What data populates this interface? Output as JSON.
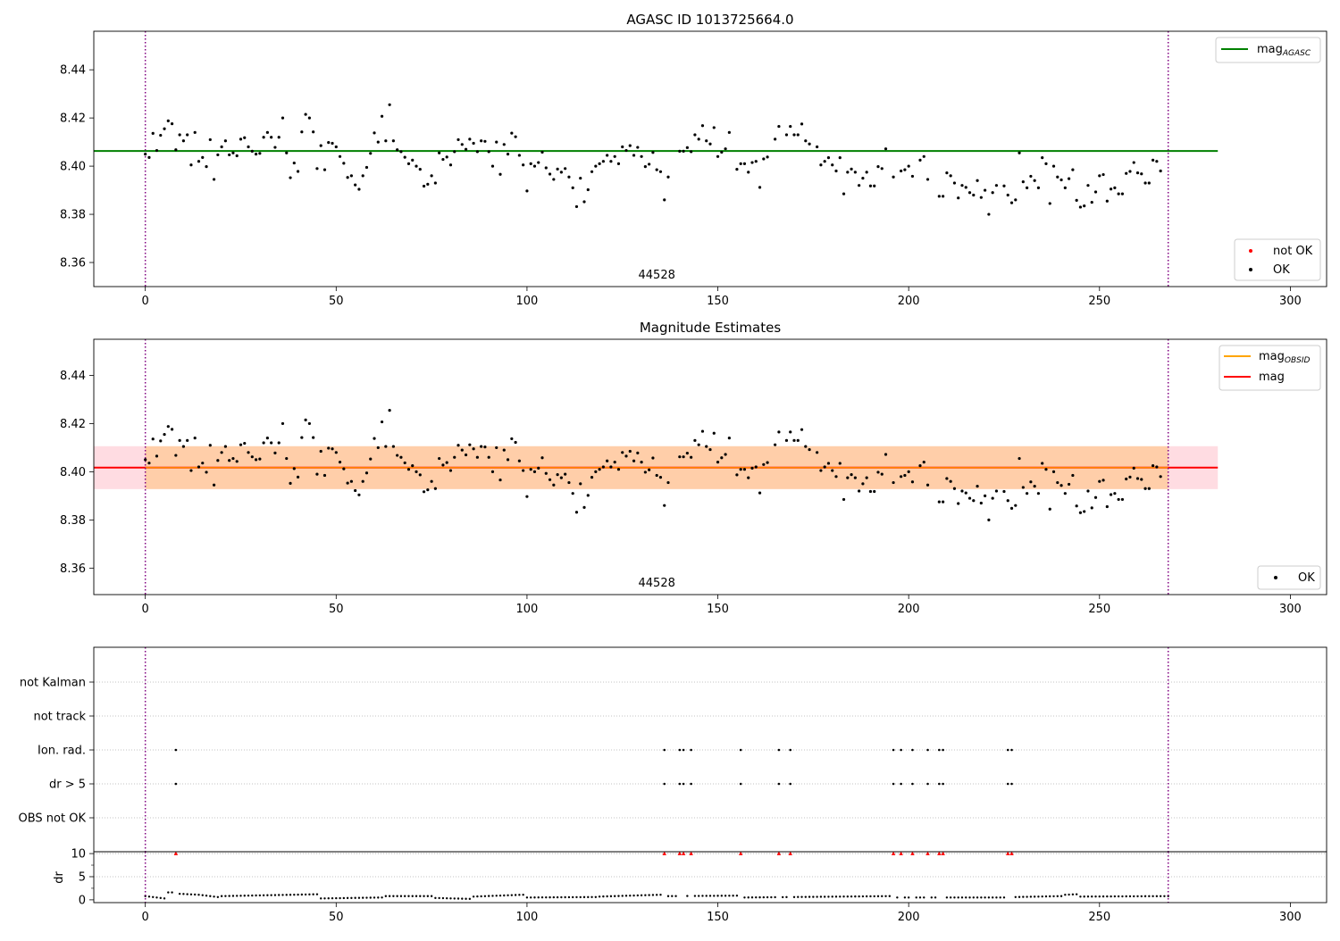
{
  "chart_data": [
    {
      "type": "scatter",
      "title": "AGASC ID 1013725664.0",
      "xlabel": "",
      "ylabel": "",
      "xlim": [
        -13.5,
        309.5
      ],
      "ylim": [
        8.35,
        8.456
      ],
      "x_ticks": [
        "0",
        "50",
        "100",
        "150",
        "200",
        "250",
        "300"
      ],
      "y_ticks": [
        "8.36",
        "8.38",
        "8.40",
        "8.42",
        "8.44"
      ],
      "vlines": [
        0,
        268
      ],
      "obsid_label": "44528",
      "hline": {
        "name": "mag_AGASC",
        "value": 8.4063,
        "x_range": [
          -13.5,
          281
        ],
        "color": "#008000"
      },
      "legend_lines": [
        {
          "label": "mag",
          "subscript": "AGASC",
          "color": "#008000"
        }
      ],
      "legend_points": [
        {
          "label": "not OK",
          "color": "#ff0000"
        },
        {
          "label": "OK",
          "color": "#000000"
        }
      ],
      "legend_placement": [
        "top-right",
        "bottom-right"
      ],
      "series": [
        {
          "name": "OK",
          "color": "#000000",
          "points_ref": "mag_points"
        }
      ]
    },
    {
      "type": "scatter",
      "title": "Magnitude Estimates",
      "xlabel": "",
      "ylabel": "",
      "xlim": [
        -13.5,
        309.5
      ],
      "ylim": [
        8.349,
        8.455
      ],
      "x_ticks": [
        "0",
        "50",
        "100",
        "150",
        "200",
        "250",
        "300"
      ],
      "y_ticks": [
        "8.36",
        "8.38",
        "8.40",
        "8.42",
        "8.44"
      ],
      "vlines": [
        0,
        268
      ],
      "obsid_label": "44528",
      "mag_line": {
        "value": 8.4017,
        "x_range": [
          -13.5,
          281
        ],
        "color": "#ff0000"
      },
      "bands": [
        {
          "low": 8.3928,
          "high": 8.4106,
          "x_range": [
            -13.5,
            281
          ],
          "color": "#ffc0cb"
        },
        {
          "low": 8.3928,
          "high": 8.4106,
          "x_range": [
            0,
            268
          ],
          "color": "#ffa500"
        }
      ],
      "legend_lines": [
        {
          "label": "mag",
          "subscript": "OBSID",
          "color": "#ffa500"
        },
        {
          "label": "mag",
          "subscript": "",
          "color": "#ff0000"
        }
      ],
      "legend_points": [
        {
          "label": "OK",
          "color": "#000000"
        }
      ],
      "legend_placement": [
        "top-right",
        "bottom-right"
      ],
      "series": [
        {
          "name": "OK",
          "color": "#000000",
          "points_ref": "mag_points"
        }
      ]
    },
    {
      "type": "scatter",
      "title": "",
      "xlim": [
        -13.5,
        309.5
      ],
      "x_ticks": [
        "0",
        "50",
        "100",
        "150",
        "200",
        "250",
        "300"
      ],
      "categories": [
        "not Kalman",
        "not track",
        "Ion. rad.",
        "dr > 5",
        "OBS not OK"
      ],
      "vlines": [
        0,
        268
      ],
      "flags": {
        "Ion. rad.": [
          8,
          136,
          140,
          141,
          143,
          156,
          166,
          169,
          196,
          198,
          201,
          205,
          208,
          209,
          226,
          227
        ],
        "dr > 5": [
          8,
          136,
          140,
          141,
          143,
          156,
          166,
          169,
          196,
          198,
          201,
          205,
          208,
          209,
          226,
          227
        ],
        "not Kalman": [],
        "not track": [],
        "OBS not OK": []
      }
    },
    {
      "type": "scatter",
      "title": "",
      "ylabel": "dr",
      "xlim": [
        -13.5,
        309.5
      ],
      "ylim": [
        -0.6,
        10.4
      ],
      "x_ticks": [
        "0",
        "50",
        "100",
        "150",
        "200",
        "250",
        "300"
      ],
      "y_ticks": [
        "0",
        "5",
        "10"
      ],
      "vlines": [
        0,
        268
      ],
      "clipped_value": 10,
      "clipped_color": "#ff0000",
      "clipped_x": [
        8,
        136,
        140,
        141,
        143,
        156,
        166,
        169,
        196,
        198,
        201,
        205,
        208,
        209,
        226,
        227
      ],
      "dr_segments": [
        {
          "x0": 0,
          "x1": 2,
          "y0": 0.8,
          "y1": 0.6
        },
        {
          "x0": 3,
          "x1": 5,
          "y0": 0.5,
          "y1": 0.3
        },
        {
          "x0": 6,
          "x1": 7,
          "y0": 1.6,
          "y1": 1.6
        },
        {
          "x0": 9,
          "x1": 14,
          "y0": 1.3,
          "y1": 1.1
        },
        {
          "x0": 15,
          "x1": 19,
          "y0": 1.0,
          "y1": 0.6
        },
        {
          "x0": 20,
          "x1": 45,
          "y0": 0.8,
          "y1": 1.2
        },
        {
          "x0": 46,
          "x1": 62,
          "y0": 0.3,
          "y1": 0.5
        },
        {
          "x0": 63,
          "x1": 75,
          "y0": 0.8,
          "y1": 0.8
        },
        {
          "x0": 76,
          "x1": 85,
          "y0": 0.4,
          "y1": 0.2
        },
        {
          "x0": 86,
          "x1": 99,
          "y0": 0.7,
          "y1": 1.1
        },
        {
          "x0": 100,
          "x1": 118,
          "y0": 0.5,
          "y1": 0.6
        },
        {
          "x0": 119,
          "x1": 135,
          "y0": 0.7,
          "y1": 1.1
        },
        {
          "x0": 137,
          "x1": 155,
          "y0": 0.8,
          "y1": 0.9
        },
        {
          "x0": 157,
          "x1": 195,
          "y0": 0.5,
          "y1": 0.8
        },
        {
          "x0": 197,
          "x1": 225,
          "y0": 0.5,
          "y1": 0.5
        },
        {
          "x0": 228,
          "x1": 240,
          "y0": 0.6,
          "y1": 0.8
        },
        {
          "x0": 241,
          "x1": 244,
          "y0": 1.1,
          "y1": 1.2
        },
        {
          "x0": 245,
          "x1": 268,
          "y0": 0.7,
          "y1": 0.8
        }
      ]
    }
  ],
  "mag_points": [
    [
      0,
      8.405
    ],
    [
      1,
      8.4036
    ],
    [
      2,
      8.4136
    ],
    [
      3,
      8.4065
    ],
    [
      4,
      8.4128
    ],
    [
      5,
      8.4155
    ],
    [
      6,
      8.4188
    ],
    [
      7,
      8.4176
    ],
    [
      8,
      8.4068
    ],
    [
      9,
      8.413
    ],
    [
      10,
      8.4105
    ],
    [
      11,
      8.413
    ],
    [
      12,
      8.4005
    ],
    [
      13,
      8.414
    ],
    [
      14,
      8.402
    ],
    [
      15,
      8.4036
    ],
    [
      16,
      8.3998
    ],
    [
      17,
      8.411
    ],
    [
      18,
      8.3945
    ],
    [
      19,
      8.4047
    ],
    [
      20,
      8.408
    ],
    [
      21,
      8.4105
    ],
    [
      22,
      8.4047
    ],
    [
      23,
      8.4055
    ],
    [
      24,
      8.4043
    ],
    [
      25,
      8.4112
    ],
    [
      26,
      8.4118
    ],
    [
      27,
      8.408
    ],
    [
      28,
      8.4062
    ],
    [
      29,
      8.405
    ],
    [
      30,
      8.4053
    ],
    [
      31,
      8.412
    ],
    [
      32,
      8.414
    ],
    [
      33,
      8.412
    ],
    [
      34,
      8.4078
    ],
    [
      35,
      8.412
    ],
    [
      36,
      8.42
    ],
    [
      37,
      8.4055
    ],
    [
      38,
      8.3952
    ],
    [
      39,
      8.4013
    ],
    [
      40,
      8.3978
    ],
    [
      41,
      8.4142
    ],
    [
      42,
      8.4215
    ],
    [
      43,
      8.42
    ],
    [
      44,
      8.4142
    ],
    [
      45,
      8.399
    ],
    [
      46,
      8.4085
    ],
    [
      47,
      8.3985
    ],
    [
      48,
      8.4098
    ],
    [
      49,
      8.4095
    ],
    [
      50,
      8.408
    ],
    [
      51,
      8.404
    ],
    [
      52,
      8.4012
    ],
    [
      53,
      8.3953
    ],
    [
      54,
      8.396
    ],
    [
      55,
      8.3922
    ],
    [
      56,
      8.3904
    ],
    [
      57,
      8.396
    ],
    [
      58,
      8.3995
    ],
    [
      59,
      8.4053
    ],
    [
      60,
      8.4138
    ],
    [
      61,
      8.41
    ],
    [
      62,
      8.4207
    ],
    [
      63,
      8.4105
    ],
    [
      64,
      8.4255
    ],
    [
      65,
      8.4105
    ],
    [
      66,
      8.4068
    ],
    [
      67,
      8.406
    ],
    [
      68,
      8.4037
    ],
    [
      69,
      8.401
    ],
    [
      70,
      8.4025
    ],
    [
      71,
      8.4
    ],
    [
      72,
      8.3987
    ],
    [
      73,
      8.3917
    ],
    [
      74,
      8.3925
    ],
    [
      75,
      8.396
    ],
    [
      76,
      8.393
    ],
    [
      77,
      8.4055
    ],
    [
      78,
      8.4028
    ],
    [
      79,
      8.4038
    ],
    [
      80,
      8.4005
    ],
    [
      81,
      8.406
    ],
    [
      82,
      8.411
    ],
    [
      83,
      8.409
    ],
    [
      84,
      8.407
    ],
    [
      85,
      8.4112
    ],
    [
      86,
      8.4095
    ],
    [
      87,
      8.406
    ],
    [
      88,
      8.4105
    ],
    [
      89,
      8.4103
    ],
    [
      90,
      8.406
    ],
    [
      91,
      8.4
    ],
    [
      92,
      8.41
    ],
    [
      93,
      8.3966
    ],
    [
      94,
      8.409
    ],
    [
      95,
      8.405
    ],
    [
      96,
      8.4137
    ],
    [
      97,
      8.4122
    ],
    [
      98,
      8.4045
    ],
    [
      99,
      8.4005
    ],
    [
      100,
      8.3897
    ],
    [
      101,
      8.401
    ],
    [
      102,
      8.4
    ],
    [
      103,
      8.4015
    ],
    [
      104,
      8.4058
    ],
    [
      105,
      8.3993
    ],
    [
      106,
      8.3967
    ],
    [
      107,
      8.3945
    ],
    [
      108,
      8.3988
    ],
    [
      109,
      8.3975
    ],
    [
      110,
      8.399
    ],
    [
      111,
      8.3955
    ],
    [
      112,
      8.391
    ],
    [
      113,
      8.3832
    ],
    [
      114,
      8.395
    ],
    [
      115,
      8.3852
    ],
    [
      116,
      8.3902
    ],
    [
      117,
      8.3977
    ],
    [
      118,
      8.4
    ],
    [
      119,
      8.401
    ],
    [
      120,
      8.402
    ],
    [
      121,
      8.4045
    ],
    [
      122,
      8.402
    ],
    [
      123,
      8.404
    ],
    [
      124,
      8.401
    ],
    [
      125,
      8.408
    ],
    [
      126,
      8.4065
    ],
    [
      127,
      8.4085
    ],
    [
      128,
      8.4045
    ],
    [
      129,
      8.4078
    ],
    [
      130,
      8.404
    ],
    [
      131,
      8.3998
    ],
    [
      132,
      8.4008
    ],
    [
      133,
      8.4057
    ],
    [
      134,
      8.3985
    ],
    [
      135,
      8.3977
    ],
    [
      136,
      8.386
    ],
    [
      137,
      8.3955
    ],
    [
      140,
      8.4062
    ],
    [
      141,
      8.4062
    ],
    [
      142,
      8.4077
    ],
    [
      143,
      8.406
    ],
    [
      144,
      8.413
    ],
    [
      145,
      8.4112
    ],
    [
      146,
      8.4168
    ],
    [
      147,
      8.4105
    ],
    [
      148,
      8.4092
    ],
    [
      149,
      8.416
    ],
    [
      150,
      8.404
    ],
    [
      151,
      8.4058
    ],
    [
      152,
      8.4072
    ],
    [
      153,
      8.414
    ],
    [
      155,
      8.3987
    ],
    [
      156,
      8.401
    ],
    [
      157,
      8.401
    ],
    [
      158,
      8.3975
    ],
    [
      159,
      8.4015
    ],
    [
      160,
      8.402
    ],
    [
      161,
      8.3912
    ],
    [
      162,
      8.403
    ],
    [
      163,
      8.4038
    ],
    [
      165,
      8.4112
    ],
    [
      166,
      8.4165
    ],
    [
      168,
      8.413
    ],
    [
      169,
      8.4165
    ],
    [
      170,
      8.413
    ],
    [
      171,
      8.413
    ],
    [
      172,
      8.4175
    ],
    [
      173,
      8.4105
    ],
    [
      174,
      8.4092
    ],
    [
      176,
      8.408
    ],
    [
      177,
      8.4005
    ],
    [
      178,
      8.402
    ],
    [
      179,
      8.4035
    ],
    [
      180,
      8.4005
    ],
    [
      181,
      8.398
    ],
    [
      182,
      8.4035
    ],
    [
      183,
      8.3885
    ],
    [
      184,
      8.3975
    ],
    [
      185,
      8.3988
    ],
    [
      186,
      8.3975
    ],
    [
      187,
      8.392
    ],
    [
      188,
      8.395
    ],
    [
      189,
      8.3975
    ],
    [
      190,
      8.3918
    ],
    [
      191,
      8.3918
    ],
    [
      192,
      8.3998
    ],
    [
      193,
      8.399
    ],
    [
      194,
      8.4072
    ],
    [
      196,
      8.3955
    ],
    [
      198,
      8.398
    ],
    [
      199,
      8.3985
    ],
    [
      200,
      8.4
    ],
    [
      201,
      8.3958
    ],
    [
      203,
      8.4025
    ],
    [
      204,
      8.404
    ],
    [
      205,
      8.3945
    ],
    [
      208,
      8.3875
    ],
    [
      209,
      8.3875
    ],
    [
      210,
      8.3972
    ],
    [
      211,
      8.396
    ],
    [
      212,
      8.393
    ],
    [
      213,
      8.3868
    ],
    [
      214,
      8.392
    ],
    [
      215,
      8.3912
    ],
    [
      216,
      8.389
    ],
    [
      217,
      8.388
    ],
    [
      218,
      8.394
    ],
    [
      219,
      8.387
    ],
    [
      220,
      8.39
    ],
    [
      221,
      8.38
    ],
    [
      222,
      8.389
    ],
    [
      223,
      8.392
    ],
    [
      225,
      8.3918
    ],
    [
      226,
      8.388
    ],
    [
      227,
      8.3848
    ],
    [
      228,
      8.386
    ],
    [
      229,
      8.4055
    ],
    [
      230,
      8.3935
    ],
    [
      231,
      8.391
    ],
    [
      232,
      8.3958
    ],
    [
      233,
      8.394
    ],
    [
      234,
      8.391
    ],
    [
      235,
      8.4035
    ],
    [
      236,
      8.401
    ],
    [
      237,
      8.3845
    ],
    [
      238,
      8.4
    ],
    [
      239,
      8.3955
    ],
    [
      240,
      8.3943
    ],
    [
      241,
      8.391
    ],
    [
      242,
      8.3948
    ],
    [
      243,
      8.3985
    ],
    [
      244,
      8.3858
    ],
    [
      245,
      8.383
    ],
    [
      246,
      8.3835
    ],
    [
      247,
      8.392
    ],
    [
      248,
      8.385
    ],
    [
      249,
      8.3893
    ],
    [
      250,
      8.396
    ],
    [
      251,
      8.3965
    ],
    [
      252,
      8.3855
    ],
    [
      253,
      8.3905
    ],
    [
      254,
      8.391
    ],
    [
      255,
      8.3885
    ],
    [
      256,
      8.3885
    ],
    [
      257,
      8.397
    ],
    [
      258,
      8.3978
    ],
    [
      259,
      8.4015
    ],
    [
      260,
      8.3972
    ],
    [
      261,
      8.3968
    ],
    [
      262,
      8.393
    ],
    [
      263,
      8.393
    ],
    [
      264,
      8.4025
    ],
    [
      265,
      8.402
    ],
    [
      266,
      8.398
    ]
  ]
}
